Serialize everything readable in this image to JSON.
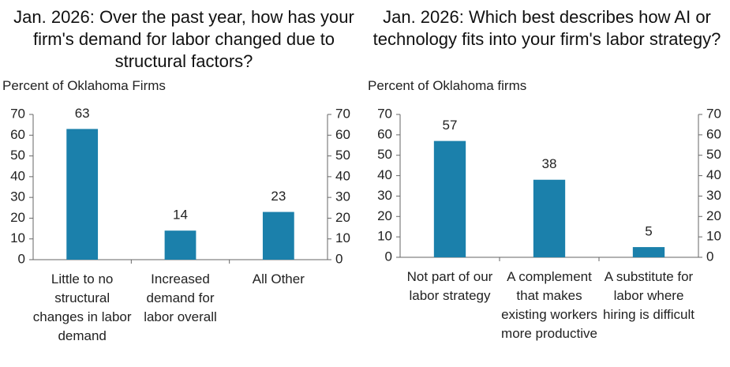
{
  "chart_data": [
    {
      "type": "bar",
      "title": "Jan. 2026: Over the past year, how has your firm's demand for labor changed due to structural factors?",
      "y_label": "Percent of Oklahoma Firms",
      "categories": [
        "Little to no structural changes in labor demand",
        "Increased demand for labor overall",
        "All Other"
      ],
      "values": [
        63,
        14,
        23
      ],
      "color": "#1b80ab",
      "ylim": [
        0,
        70
      ],
      "yticks": [
        0,
        10,
        20,
        30,
        40,
        50,
        60,
        70
      ],
      "y2lim": [
        0,
        70
      ],
      "y2ticks": [
        0,
        10,
        20,
        30,
        40,
        50,
        60,
        70
      ]
    },
    {
      "type": "bar",
      "title": "Jan. 2026: Which best describes how AI or technology fits into your firm's labor strategy?",
      "y_label": "Percent of Oklahoma firms",
      "categories": [
        "Not part of our labor strategy",
        "A complement that makes existing workers more productive",
        "A substitute for labor where hiring is difficult"
      ],
      "values": [
        57,
        38,
        5
      ],
      "color": "#1b80ab",
      "ylim": [
        0,
        70
      ],
      "yticks": [
        0,
        10,
        20,
        30,
        40,
        50,
        60,
        70
      ],
      "y2lim": [
        0,
        70
      ],
      "y2ticks": [
        0,
        10,
        20,
        30,
        40,
        50,
        60,
        70
      ]
    }
  ]
}
